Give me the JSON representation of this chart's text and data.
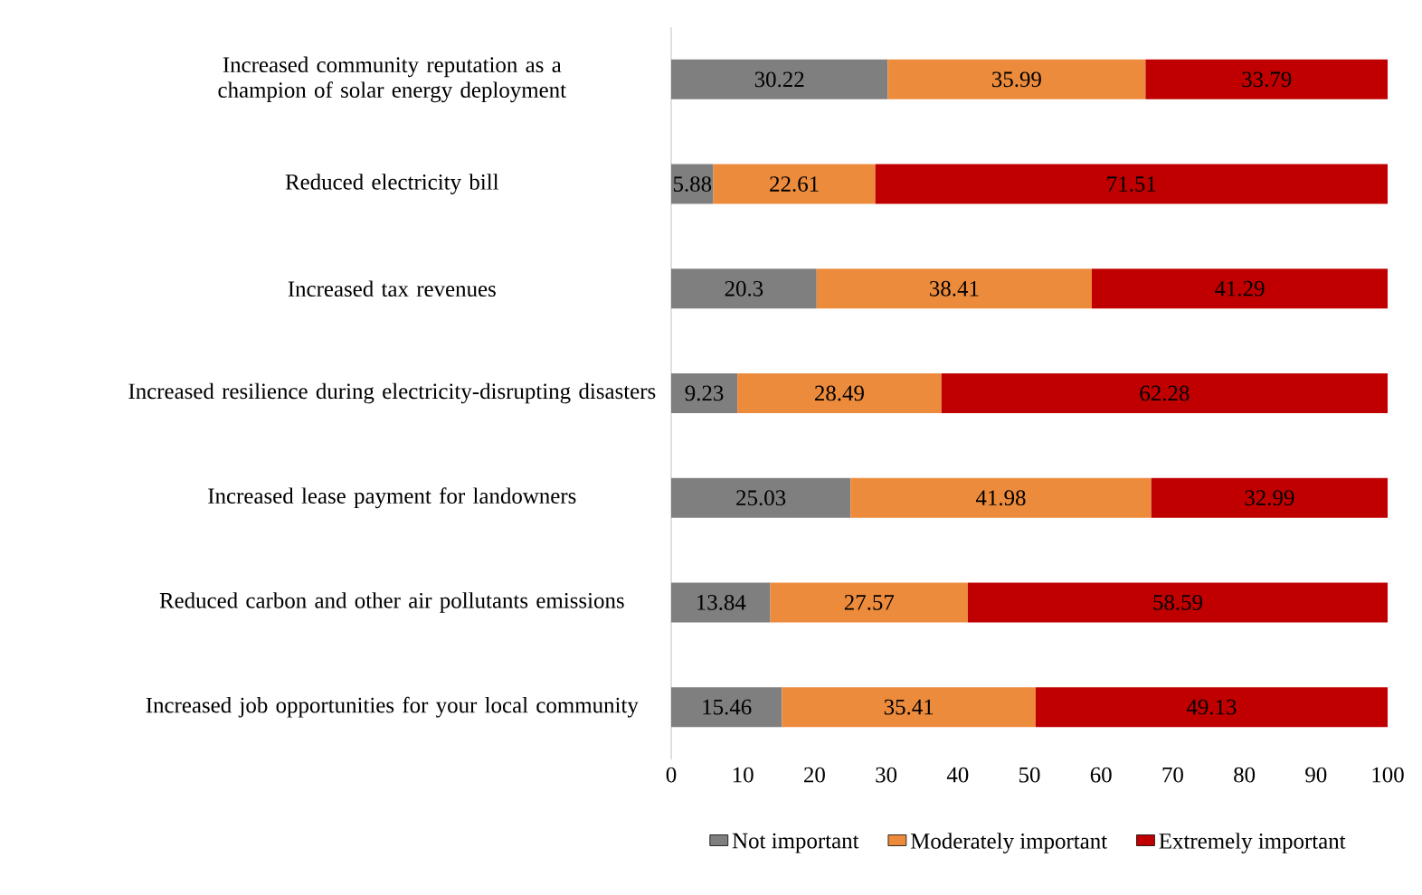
{
  "chart_data": {
    "type": "bar",
    "orientation": "horizontal",
    "stacked": true,
    "data_labels": true,
    "legend": "bottom",
    "grid": false,
    "categories": [
      "Increased community reputation as a champion of solar energy deployment",
      "Reduced electricity bill",
      "Increased tax revenues",
      "Increased resilience during electricity-disrupting disasters",
      "Increased lease payment for landowners",
      "Reduced carbon and other air pollutants emissions",
      "Increased job opportunities for your local community"
    ],
    "series": [
      {
        "name": "Not important",
        "color": "#7f7f7f",
        "values": [
          30.22,
          5.88,
          20.3,
          9.23,
          25.03,
          13.84,
          15.46
        ]
      },
      {
        "name": "Moderately important",
        "color": "#ed8b3c",
        "values": [
          35.99,
          22.61,
          38.41,
          28.49,
          41.98,
          27.57,
          35.41
        ]
      },
      {
        "name": "Extremely important",
        "color": "#c00000",
        "values": [
          33.79,
          71.51,
          41.29,
          62.28,
          32.99,
          58.59,
          49.13
        ]
      }
    ],
    "xlim": [
      0,
      100
    ],
    "xticks": [
      0,
      10,
      20,
      30,
      40,
      50,
      60,
      70,
      80,
      90,
      100
    ]
  }
}
